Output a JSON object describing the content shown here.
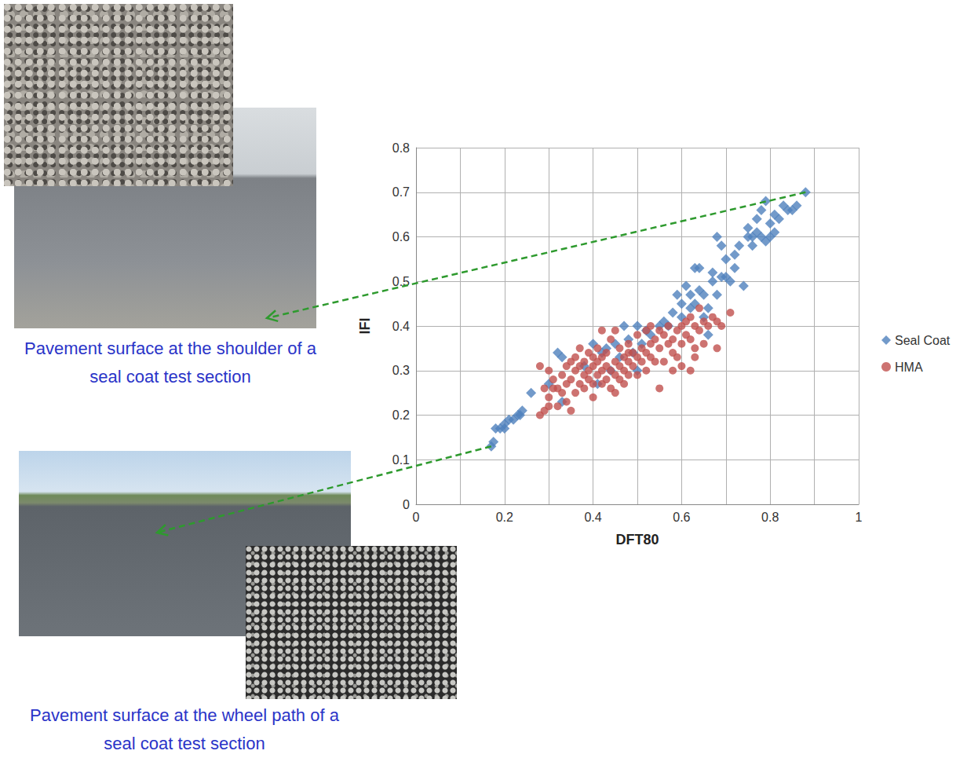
{
  "chart_data": {
    "type": "scatter",
    "x_label": "DFT80",
    "y_label": "IFI",
    "xlim": [
      0,
      1
    ],
    "xticks": [
      0,
      0.2,
      0.4,
      0.6,
      0.8,
      1
    ],
    "ylim": [
      0,
      0.8
    ],
    "yticks": [
      0,
      0.1,
      0.2,
      0.3,
      0.4,
      0.5,
      0.6,
      0.7,
      0.8
    ],
    "grid": true,
    "legend": "right",
    "series": [
      {
        "name": "Seal Coat",
        "color": "#4f81bd",
        "marker": "diamond",
        "values": [
          [
            0.17,
            0.13
          ],
          [
            0.175,
            0.14
          ],
          [
            0.18,
            0.17
          ],
          [
            0.19,
            0.17
          ],
          [
            0.2,
            0.18
          ],
          [
            0.2,
            0.17
          ],
          [
            0.21,
            0.19
          ],
          [
            0.22,
            0.19
          ],
          [
            0.23,
            0.2
          ],
          [
            0.24,
            0.21
          ],
          [
            0.235,
            0.2
          ],
          [
            0.26,
            0.25
          ],
          [
            0.3,
            0.27
          ],
          [
            0.32,
            0.34
          ],
          [
            0.33,
            0.33
          ],
          [
            0.33,
            0.23
          ],
          [
            0.38,
            0.31
          ],
          [
            0.4,
            0.36
          ],
          [
            0.42,
            0.34
          ],
          [
            0.41,
            0.27
          ],
          [
            0.43,
            0.35
          ],
          [
            0.44,
            0.3
          ],
          [
            0.45,
            0.36
          ],
          [
            0.46,
            0.33
          ],
          [
            0.47,
            0.4
          ],
          [
            0.48,
            0.37
          ],
          [
            0.49,
            0.34
          ],
          [
            0.5,
            0.4
          ],
          [
            0.5,
            0.3
          ],
          [
            0.51,
            0.36
          ],
          [
            0.52,
            0.39
          ],
          [
            0.53,
            0.38
          ],
          [
            0.55,
            0.4
          ],
          [
            0.56,
            0.41
          ],
          [
            0.57,
            0.4
          ],
          [
            0.58,
            0.43
          ],
          [
            0.59,
            0.47
          ],
          [
            0.6,
            0.45
          ],
          [
            0.61,
            0.49
          ],
          [
            0.62,
            0.47
          ],
          [
            0.63,
            0.53
          ],
          [
            0.63,
            0.45
          ],
          [
            0.64,
            0.53
          ],
          [
            0.64,
            0.48
          ],
          [
            0.65,
            0.42
          ],
          [
            0.65,
            0.47
          ],
          [
            0.66,
            0.44
          ],
          [
            0.67,
            0.5
          ],
          [
            0.67,
            0.52
          ],
          [
            0.68,
            0.6
          ],
          [
            0.68,
            0.47
          ],
          [
            0.69,
            0.58
          ],
          [
            0.69,
            0.51
          ],
          [
            0.7,
            0.55
          ],
          [
            0.7,
            0.51
          ],
          [
            0.71,
            0.5
          ],
          [
            0.72,
            0.56
          ],
          [
            0.72,
            0.53
          ],
          [
            0.73,
            0.58
          ],
          [
            0.74,
            0.49
          ],
          [
            0.75,
            0.6
          ],
          [
            0.75,
            0.62
          ],
          [
            0.76,
            0.6
          ],
          [
            0.76,
            0.58
          ],
          [
            0.77,
            0.61
          ],
          [
            0.77,
            0.64
          ],
          [
            0.78,
            0.6
          ],
          [
            0.78,
            0.66
          ],
          [
            0.79,
            0.59
          ],
          [
            0.79,
            0.68
          ],
          [
            0.8,
            0.63
          ],
          [
            0.8,
            0.6
          ],
          [
            0.81,
            0.65
          ],
          [
            0.81,
            0.61
          ],
          [
            0.82,
            0.64
          ],
          [
            0.83,
            0.67
          ],
          [
            0.84,
            0.66
          ],
          [
            0.85,
            0.66
          ],
          [
            0.86,
            0.67
          ],
          [
            0.88,
            0.7
          ],
          [
            0.66,
            0.38
          ],
          [
            0.6,
            0.42
          ],
          [
            0.62,
            0.44
          ]
        ]
      },
      {
        "name": "HMA",
        "color": "#c0504d",
        "marker": "circle",
        "values": [
          [
            0.28,
            0.2
          ],
          [
            0.28,
            0.31
          ],
          [
            0.29,
            0.21
          ],
          [
            0.29,
            0.26
          ],
          [
            0.3,
            0.3
          ],
          [
            0.3,
            0.22
          ],
          [
            0.31,
            0.26
          ],
          [
            0.31,
            0.28
          ],
          [
            0.32,
            0.26
          ],
          [
            0.32,
            0.22
          ],
          [
            0.33,
            0.29
          ],
          [
            0.33,
            0.25
          ],
          [
            0.34,
            0.31
          ],
          [
            0.34,
            0.23
          ],
          [
            0.35,
            0.28
          ],
          [
            0.35,
            0.32
          ],
          [
            0.35,
            0.21
          ],
          [
            0.36,
            0.3
          ],
          [
            0.36,
            0.33
          ],
          [
            0.36,
            0.25
          ],
          [
            0.37,
            0.27
          ],
          [
            0.37,
            0.31
          ],
          [
            0.37,
            0.35
          ],
          [
            0.38,
            0.29
          ],
          [
            0.38,
            0.32
          ],
          [
            0.38,
            0.26
          ],
          [
            0.39,
            0.3
          ],
          [
            0.39,
            0.34
          ],
          [
            0.39,
            0.28
          ],
          [
            0.4,
            0.31
          ],
          [
            0.4,
            0.27
          ],
          [
            0.4,
            0.33
          ],
          [
            0.4,
            0.24
          ],
          [
            0.41,
            0.29
          ],
          [
            0.41,
            0.32
          ],
          [
            0.41,
            0.35
          ],
          [
            0.42,
            0.3
          ],
          [
            0.42,
            0.27
          ],
          [
            0.42,
            0.39
          ],
          [
            0.43,
            0.31
          ],
          [
            0.43,
            0.28
          ],
          [
            0.43,
            0.34
          ],
          [
            0.44,
            0.3
          ],
          [
            0.44,
            0.26
          ],
          [
            0.44,
            0.37
          ],
          [
            0.45,
            0.32
          ],
          [
            0.45,
            0.29
          ],
          [
            0.45,
            0.25
          ],
          [
            0.45,
            0.39
          ],
          [
            0.46,
            0.31
          ],
          [
            0.46,
            0.28
          ],
          [
            0.46,
            0.35
          ],
          [
            0.47,
            0.3
          ],
          [
            0.47,
            0.33
          ],
          [
            0.47,
            0.27
          ],
          [
            0.48,
            0.32
          ],
          [
            0.48,
            0.29
          ],
          [
            0.48,
            0.36
          ],
          [
            0.49,
            0.31
          ],
          [
            0.49,
            0.34
          ],
          [
            0.5,
            0.33
          ],
          [
            0.5,
            0.29
          ],
          [
            0.5,
            0.38
          ],
          [
            0.51,
            0.32
          ],
          [
            0.51,
            0.35
          ],
          [
            0.52,
            0.34
          ],
          [
            0.52,
            0.3
          ],
          [
            0.52,
            0.39
          ],
          [
            0.53,
            0.36
          ],
          [
            0.53,
            0.33
          ],
          [
            0.53,
            0.4
          ],
          [
            0.54,
            0.32
          ],
          [
            0.54,
            0.37
          ],
          [
            0.55,
            0.26
          ],
          [
            0.55,
            0.35
          ],
          [
            0.56,
            0.38
          ],
          [
            0.56,
            0.32
          ],
          [
            0.57,
            0.36
          ],
          [
            0.57,
            0.4
          ],
          [
            0.58,
            0.34
          ],
          [
            0.58,
            0.37
          ],
          [
            0.58,
            0.3
          ],
          [
            0.59,
            0.39
          ],
          [
            0.59,
            0.33
          ],
          [
            0.6,
            0.4
          ],
          [
            0.6,
            0.36
          ],
          [
            0.6,
            0.31
          ],
          [
            0.61,
            0.41
          ],
          [
            0.61,
            0.38
          ],
          [
            0.62,
            0.42
          ],
          [
            0.62,
            0.37
          ],
          [
            0.62,
            0.3
          ],
          [
            0.63,
            0.4
          ],
          [
            0.63,
            0.35
          ],
          [
            0.63,
            0.33
          ],
          [
            0.64,
            0.39
          ],
          [
            0.64,
            0.44
          ],
          [
            0.65,
            0.41
          ],
          [
            0.65,
            0.36
          ],
          [
            0.66,
            0.4
          ],
          [
            0.67,
            0.42
          ],
          [
            0.68,
            0.41
          ],
          [
            0.68,
            0.35
          ],
          [
            0.69,
            0.4
          ],
          [
            0.71,
            0.43
          ],
          [
            0.3,
            0.24
          ],
          [
            0.34,
            0.27
          ],
          [
            0.42,
            0.33
          ],
          [
            0.48,
            0.34
          ],
          [
            0.55,
            0.39
          ]
        ]
      }
    ],
    "annotations": [
      {
        "text": "Pavement surface at the shoulder of a seal coat test section",
        "x": 0.88,
        "y": 0.7
      },
      {
        "text": "Pavement surface at the wheel path of a seal coat test section",
        "x": 0.17,
        "y": 0.13
      }
    ]
  }
}
